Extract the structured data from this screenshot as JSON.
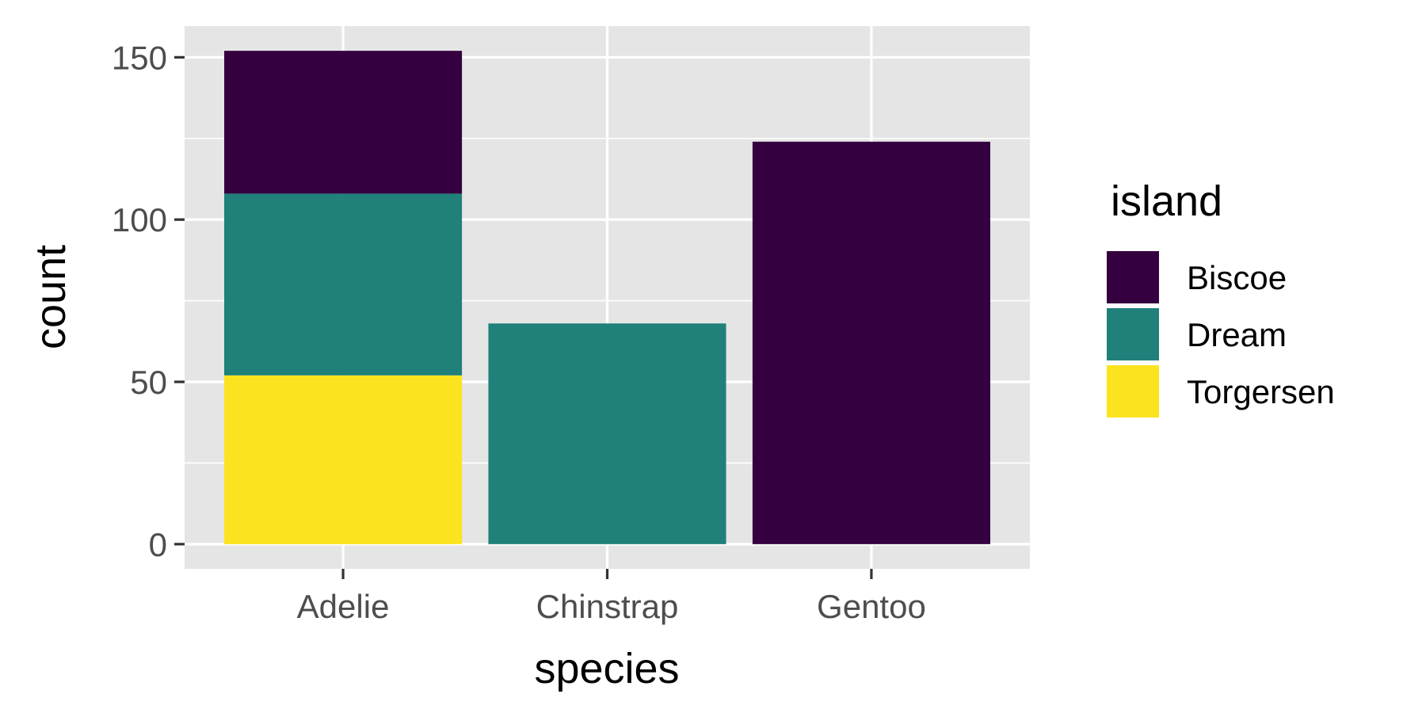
{
  "chart_data": {
    "type": "bar",
    "stacked": true,
    "categories": [
      "Adelie",
      "Chinstrap",
      "Gentoo"
    ],
    "series": [
      {
        "name": "Biscoe",
        "color": "#35003f",
        "values": [
          44,
          0,
          124
        ]
      },
      {
        "name": "Dream",
        "color": "#20807a",
        "values": [
          56,
          68,
          0
        ]
      },
      {
        "name": "Torgersen",
        "color": "#fbe41f",
        "values": [
          52,
          0,
          0
        ]
      }
    ],
    "stack_order": [
      "Torgersen",
      "Dream",
      "Biscoe"
    ],
    "xlabel": "species",
    "ylabel": "count",
    "yticks": [
      0,
      50,
      100,
      150
    ],
    "ylim": [
      -7.6,
      159.6
    ],
    "grid": true,
    "panel_background": "#e5e5e5",
    "legend": {
      "title": "island",
      "placement": "right",
      "entries": [
        "Biscoe",
        "Dream",
        "Torgersen"
      ]
    }
  }
}
